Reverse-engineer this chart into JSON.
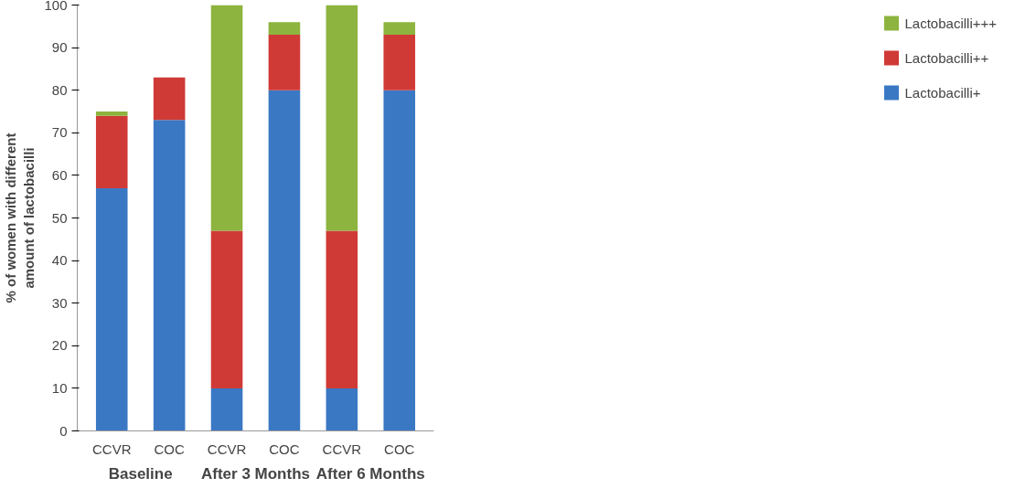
{
  "chart_data": {
    "type": "bar",
    "stacked": true,
    "ylabel": "% of women with different\namount of lactobacilli",
    "categories": [
      "CCVR",
      "COC",
      "CCVR",
      "COC",
      "CCVR",
      "COC"
    ],
    "annotations": [
      "Baseline",
      "After 3 Months",
      "After 6 Months"
    ],
    "series": [
      {
        "name": "Lactobacilli+",
        "color": "#3a78c4",
        "values": [
          57,
          73,
          10,
          80,
          10,
          80
        ]
      },
      {
        "name": "Lactobacilli++",
        "color": "#d03a36",
        "values": [
          17,
          10,
          37,
          13,
          37,
          13
        ]
      },
      {
        "name": "Lactobacilli+++",
        "color": "#8db43e",
        "values": [
          1,
          0,
          53,
          3,
          53,
          3
        ]
      }
    ],
    "ylim": [
      0,
      100
    ],
    "yticks": [
      0,
      10,
      20,
      30,
      40,
      50,
      60,
      70,
      80,
      90,
      100
    ],
    "grid": false,
    "legend": "right"
  }
}
